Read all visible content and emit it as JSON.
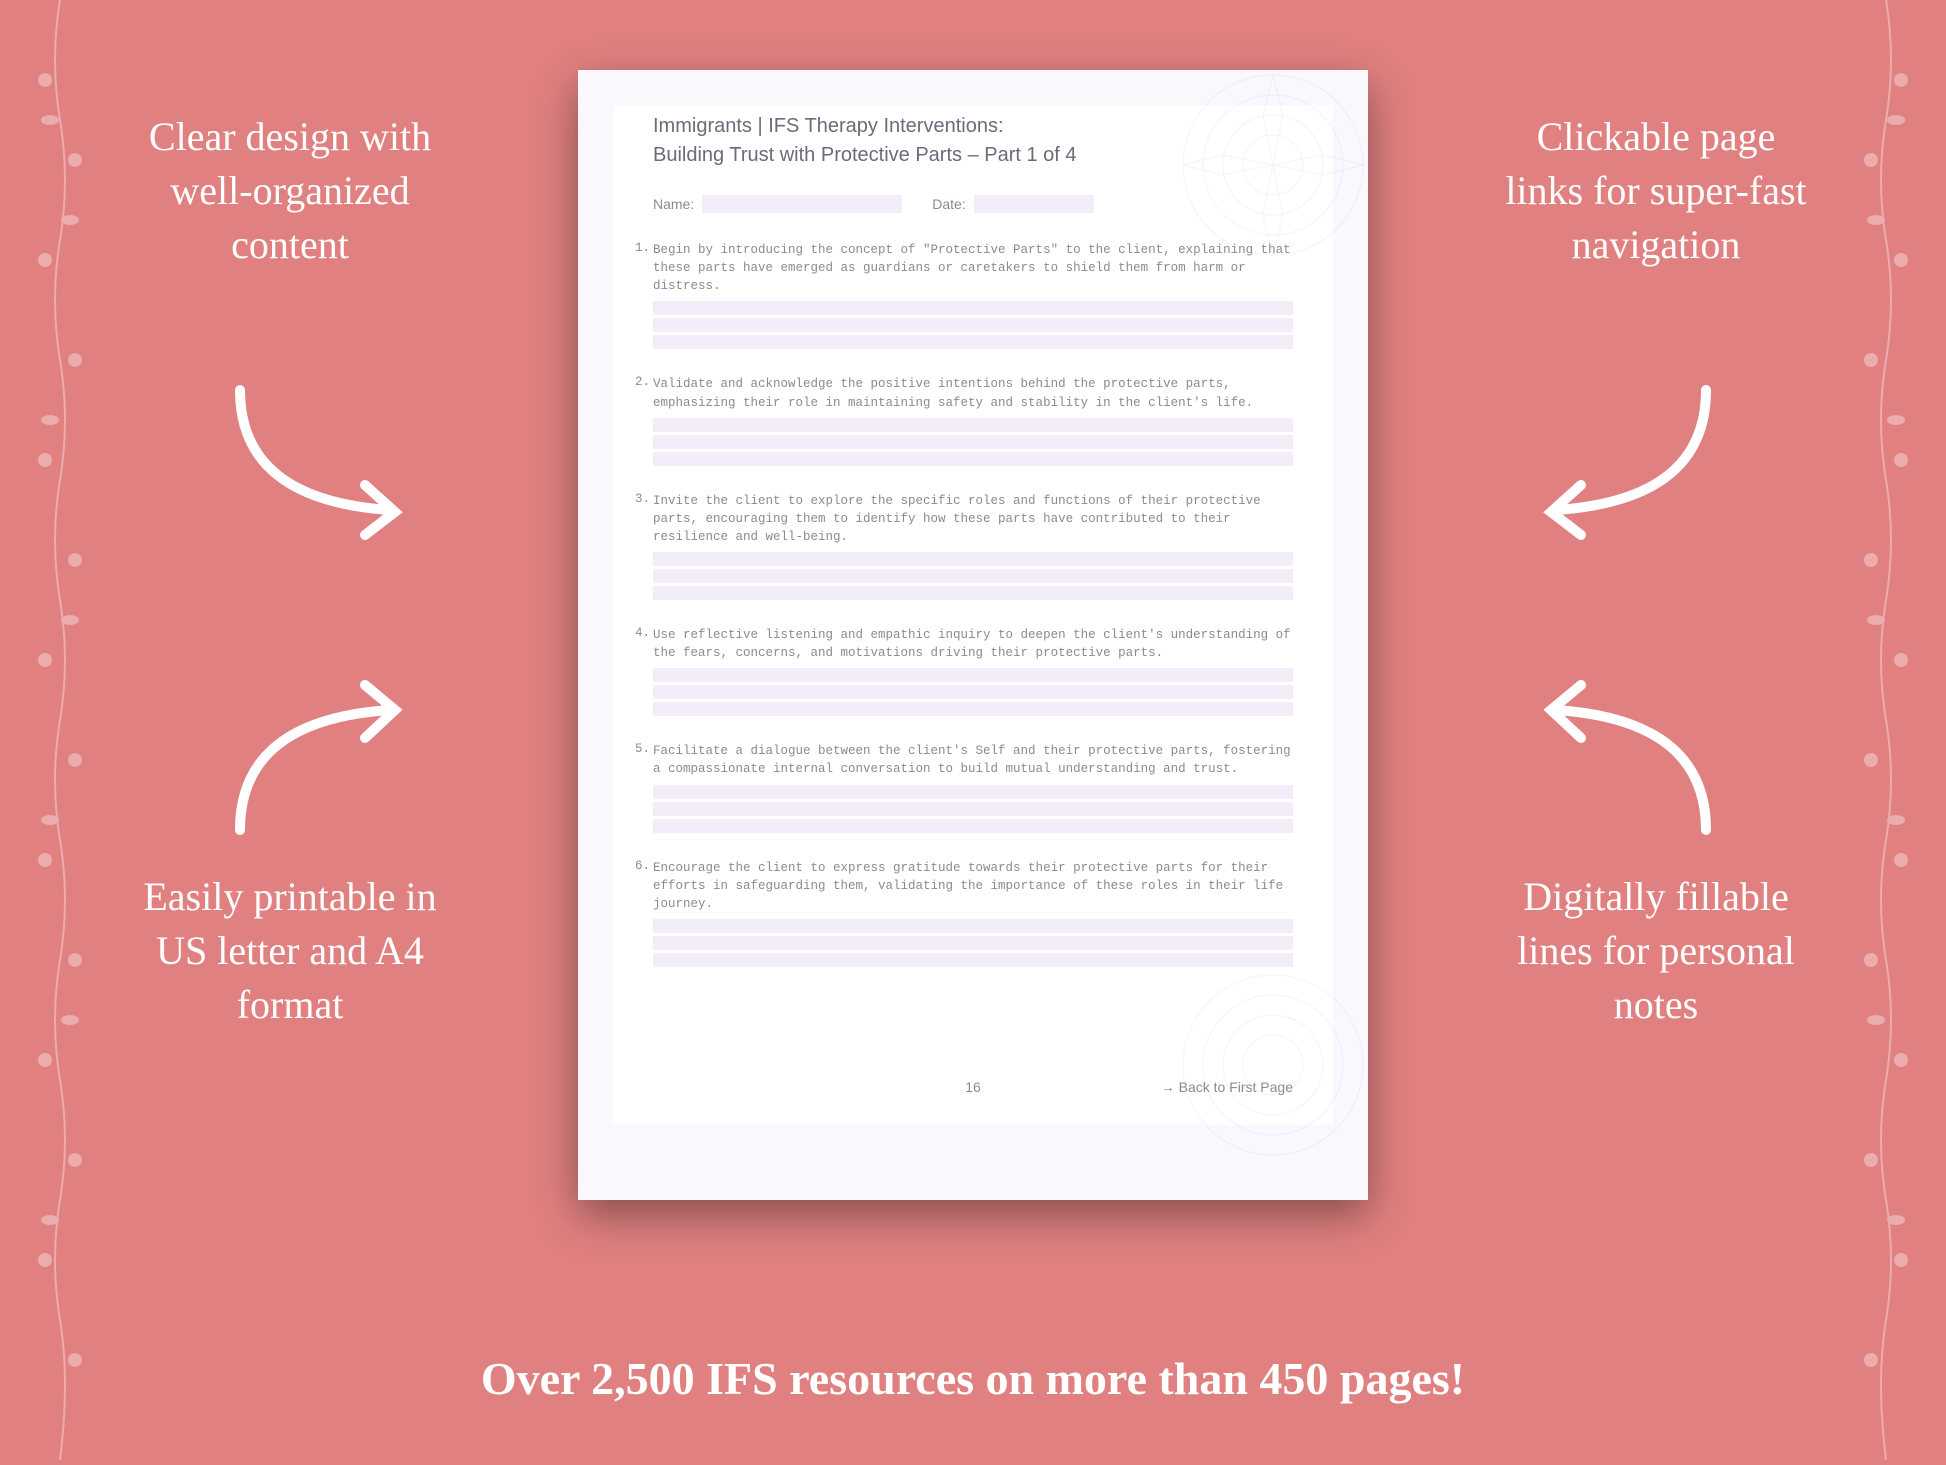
{
  "background_color": "#e08080",
  "page_bg": "#faf7fd",
  "inner_bg": "#ffffff",
  "field_bg": "#f3edfa",
  "text_muted": "#8a8a96",
  "text_heading": "#6b6b7a",
  "callout_color": "#ffffff",
  "callouts": {
    "top_left": "Clear design with well-organized content",
    "top_right": "Clickable page links for super-fast navigation",
    "bottom_left": "Easily printable in US letter and A4 format",
    "bottom_right": "Digitally fillable lines for personal notes"
  },
  "tagline": "Over 2,500 IFS resources on more than 450 pages!",
  "document": {
    "title": "Immigrants | IFS Therapy Interventions:",
    "subtitle": "Building Trust with Protective Parts  – Part 1 of 4",
    "name_label": "Name:",
    "date_label": "Date:",
    "items": [
      "Begin by introducing the concept of \"Protective Parts\" to the client, explaining that these parts have emerged as guardians or caretakers to shield them from harm or distress.",
      "Validate and acknowledge the positive intentions behind the protective parts, emphasizing their role in maintaining safety and stability in the client's life.",
      "Invite the client to explore the specific roles and functions of their protective parts, encouraging them to identify how these parts have contributed to their resilience and well-being.",
      "Use reflective listening and empathic inquiry to deepen the client's understanding of the fears, concerns, and motivations driving their protective parts.",
      "Facilitate a dialogue between the client's Self and their protective parts, fostering a compassionate internal conversation to build mutual understanding and trust.",
      "Encourage the client to express gratitude towards their protective parts for their efforts in safeguarding them, validating the importance of these roles in their life journey."
    ],
    "page_number": "16",
    "back_link": "→ Back to First Page"
  }
}
